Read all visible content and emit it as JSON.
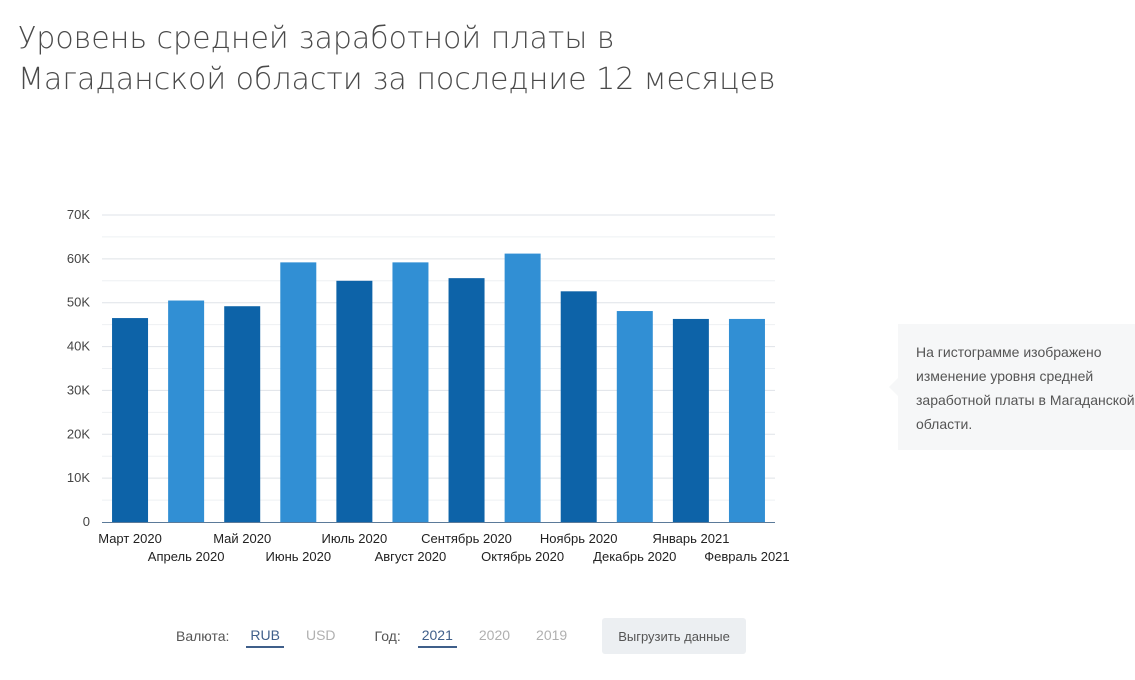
{
  "page": {
    "title": "Уровень средней заработной платы в Магаданской области за последние 12 месяцев"
  },
  "note": {
    "text": "На гистограмме изображено изменение уровня средней заработной платы в Магаданской области."
  },
  "controls": {
    "currency_label": "Валюта:",
    "currencies": [
      "RUB",
      "USD"
    ],
    "currency_selected": "RUB",
    "year_label": "Год:",
    "years": [
      "2021",
      "2020",
      "2019"
    ],
    "year_selected": "2021",
    "export_label": "Выгрузить данные"
  },
  "colors": {
    "dark": "#0d63a8",
    "light": "#318fd4",
    "grid": "#dfe3e8",
    "axis": "#5b7a99"
  },
  "chart_data": {
    "type": "bar",
    "title": "",
    "xlabel": "",
    "ylabel": "",
    "ylim": [
      0,
      70000
    ],
    "yticks": [
      0,
      10000,
      20000,
      30000,
      40000,
      50000,
      60000,
      70000
    ],
    "ytick_labels": [
      "0",
      "10K",
      "20K",
      "30K",
      "40K",
      "50K",
      "60K",
      "70K"
    ],
    "categories": [
      "Март 2020",
      "Апрель 2020",
      "Май 2020",
      "Июнь 2020",
      "Июль 2020",
      "Август 2020",
      "Сентябрь 2020",
      "Октябрь 2020",
      "Ноябрь 2020",
      "Декабрь 2020",
      "Январь 2021",
      "Февраль 2021"
    ],
    "values": [
      46500,
      50500,
      49200,
      59200,
      55000,
      59200,
      55600,
      61200,
      52600,
      48100,
      46300,
      46300
    ]
  }
}
